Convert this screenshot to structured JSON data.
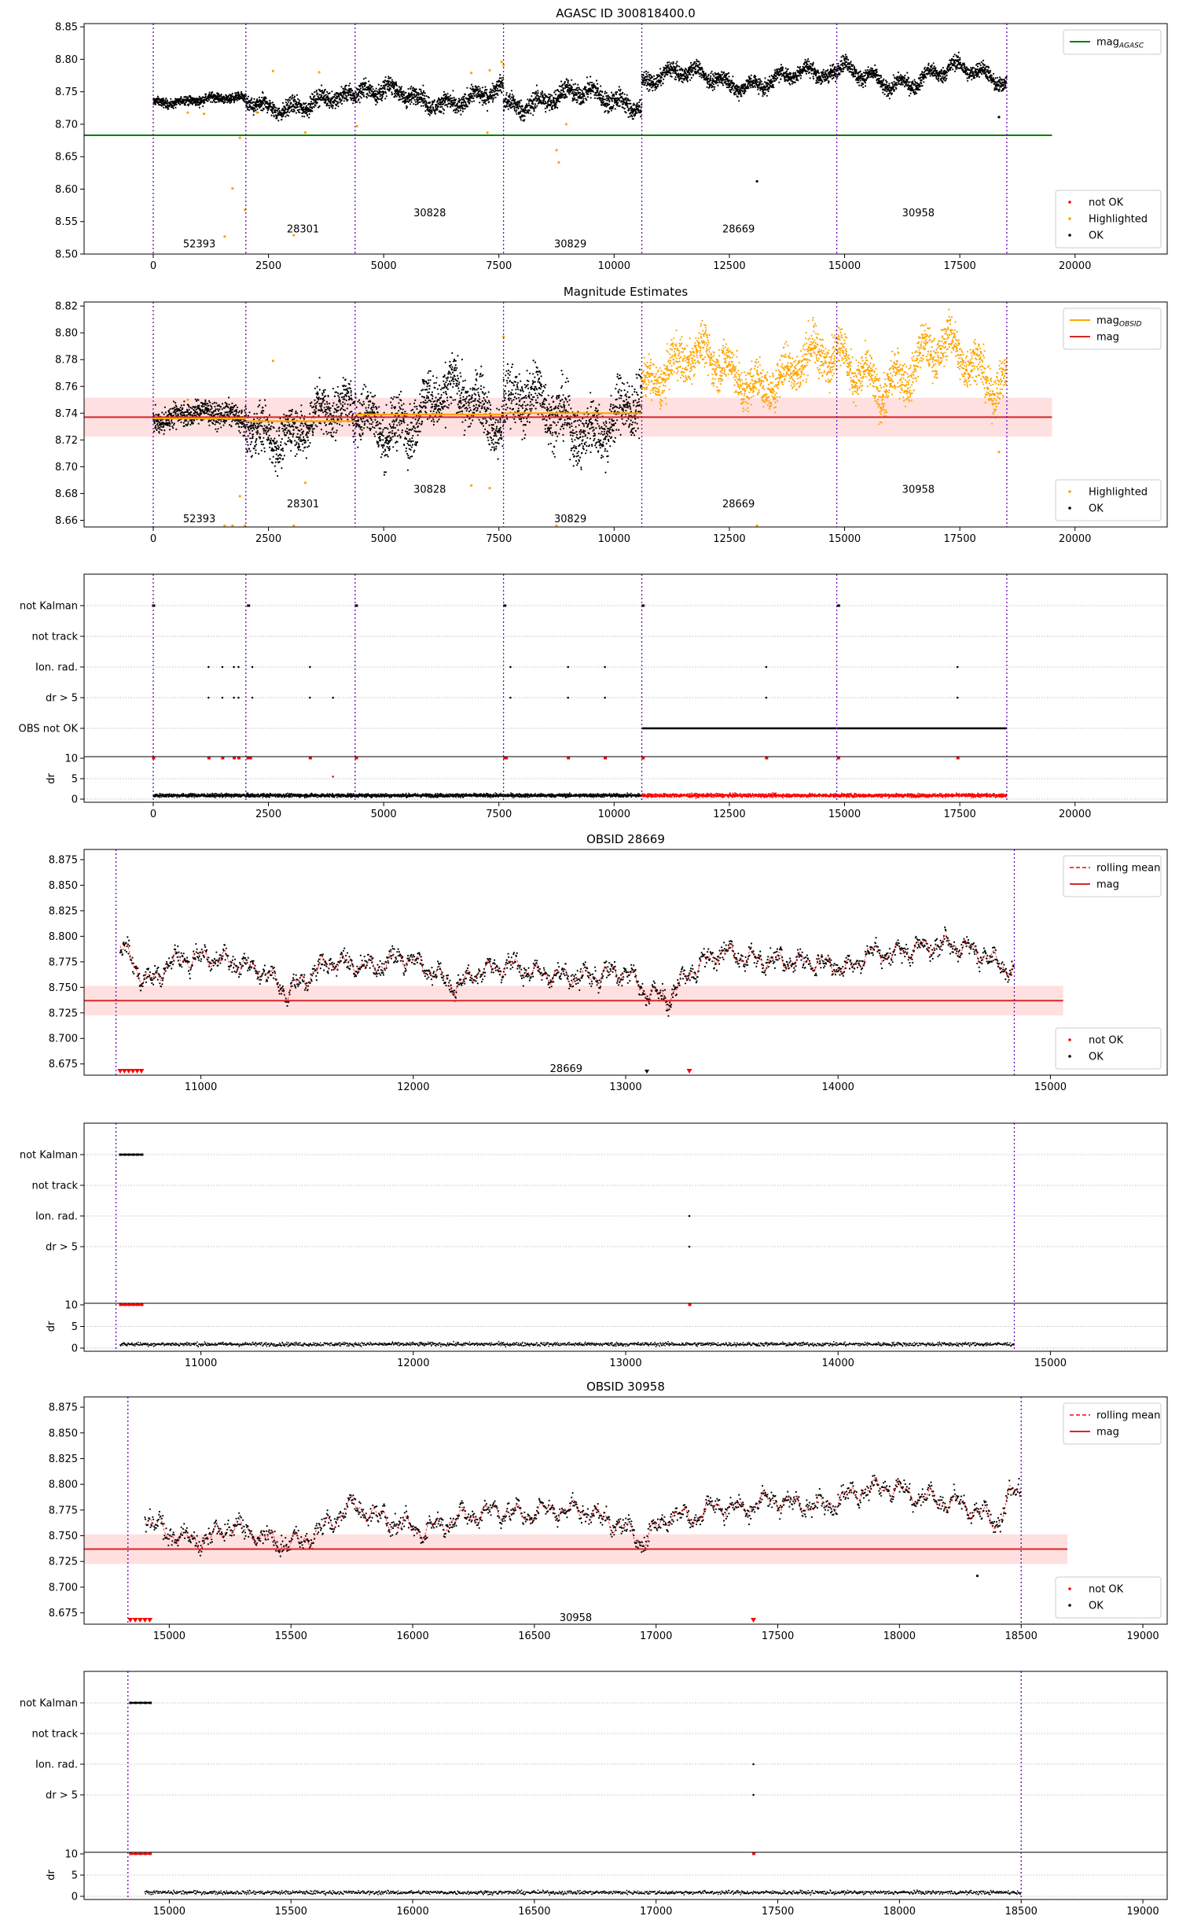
{
  "chart_data": [
    {
      "panel": "agasc",
      "type": "scatter",
      "title": "AGASC ID 300818400.0",
      "xlim": [
        -1500,
        22000
      ],
      "ylim": [
        8.5,
        8.855
      ],
      "xticks": [
        0,
        2500,
        5000,
        7500,
        10000,
        12500,
        15000,
        17500,
        20000
      ],
      "yticks": [
        8.5,
        8.55,
        8.6,
        8.65,
        8.7,
        8.75,
        8.8,
        8.85
      ],
      "grid": false,
      "legend_top": {
        "position": "top-right",
        "entries": [
          {
            "label": "mag",
            "sub": "AGASC",
            "color": "#008000"
          }
        ]
      },
      "legend_bottom": {
        "position": "bottom-right",
        "entries": [
          {
            "label": "not OK",
            "color": "#ff0000"
          },
          {
            "label": "Highlighted",
            "color": "#ffa500"
          },
          {
            "label": "OK",
            "color": "#000000"
          }
        ]
      },
      "mag_agasc": 8.683,
      "vlines": [
        0,
        2010,
        4380,
        7600,
        10600,
        14830,
        18520
      ],
      "obsids": [
        {
          "label": "52393",
          "x": 1000,
          "y": 8.515
        },
        {
          "label": "28301",
          "x": 3250,
          "y": 8.538
        },
        {
          "label": "30828",
          "x": 6000,
          "y": 8.563
        },
        {
          "label": "30829",
          "x": 9050,
          "y": 8.515
        },
        {
          "label": "28669",
          "x": 12700,
          "y": 8.538
        },
        {
          "label": "30958",
          "x": 16600,
          "y": 8.563
        }
      ],
      "segments": [
        {
          "x0": 0,
          "x1": 2010,
          "base": 8.737,
          "amp": 0.004,
          "noise": 0.007,
          "type": "ok"
        },
        {
          "x0": 2010,
          "x1": 4380,
          "base": 8.733,
          "amp": 0.01,
          "noise": 0.013,
          "type": "ok"
        },
        {
          "x0": 4380,
          "x1": 7600,
          "base": 8.742,
          "amp": 0.012,
          "noise": 0.014,
          "type": "ok"
        },
        {
          "x0": 7600,
          "x1": 10600,
          "base": 8.739,
          "amp": 0.012,
          "noise": 0.016,
          "type": "ok"
        },
        {
          "x0": 10600,
          "x1": 14830,
          "base": 8.77,
          "amp": 0.012,
          "noise": 0.012,
          "type": "ok"
        },
        {
          "x0": 14830,
          "x1": 18520,
          "base": 8.774,
          "amp": 0.014,
          "noise": 0.012,
          "type": "ok"
        }
      ],
      "highlight_points": [
        [
          1550,
          8.527
        ],
        [
          1720,
          8.601
        ],
        [
          1880,
          8.679
        ],
        [
          1990,
          8.568
        ],
        [
          2250,
          8.718
        ],
        [
          2600,
          8.782
        ],
        [
          3050,
          8.529
        ],
        [
          3300,
          8.687
        ],
        [
          3600,
          8.78
        ],
        [
          4420,
          8.697
        ],
        [
          6900,
          8.779
        ],
        [
          7300,
          8.783
        ],
        [
          7560,
          8.796
        ],
        [
          7600,
          8.791
        ],
        [
          8750,
          8.66
        ],
        [
          8800,
          8.641
        ],
        [
          8960,
          8.7
        ],
        [
          7250,
          8.687
        ],
        [
          750,
          8.718
        ],
        [
          1100,
          8.716
        ]
      ],
      "ok_extra_points": [
        [
          13100,
          8.612
        ],
        [
          18350,
          8.711
        ]
      ],
      "notok_points": [],
      "mask_highlight": false
    },
    {
      "panel": "estimates",
      "type": "scatter",
      "title": "Magnitude Estimates",
      "xlim": [
        -1500,
        22000
      ],
      "ylim": [
        8.655,
        8.823
      ],
      "xticks": [
        0,
        2500,
        5000,
        7500,
        10000,
        12500,
        15000,
        17500,
        20000
      ],
      "yticks": [
        8.66,
        8.68,
        8.7,
        8.72,
        8.74,
        8.76,
        8.78,
        8.8,
        8.82
      ],
      "grid": false,
      "legend_top": {
        "position": "top-right",
        "entries": [
          {
            "label": "mag",
            "sub": "OBSID",
            "color": "#ffa500"
          },
          {
            "label": "mag",
            "sub": "",
            "color": "#d62728"
          }
        ]
      },
      "legend_bottom": {
        "position": "bottom-right",
        "entries": [
          {
            "label": "Highlighted",
            "color": "#ffa500"
          },
          {
            "label": "OK",
            "color": "#000000"
          }
        ]
      },
      "mag": 8.737,
      "mag_band": [
        8.7225,
        8.7515
      ],
      "mag_x_end": 19500,
      "obs_mag_lines": [
        {
          "x0": 0,
          "x1": 2010,
          "y": 8.736
        },
        {
          "x0": 2010,
          "x1": 4380,
          "y": 8.734
        },
        {
          "x0": 4380,
          "x1": 7600,
          "y": 8.739
        },
        {
          "x0": 7600,
          "x1": 10600,
          "y": 8.74
        }
      ],
      "vlines": [
        0,
        2010,
        4380,
        7600,
        10600,
        14830,
        18520
      ],
      "obsids": [
        {
          "label": "52393",
          "x": 1000,
          "y": 8.661
        },
        {
          "label": "28301",
          "x": 3250,
          "y": 8.672
        },
        {
          "label": "30828",
          "x": 6000,
          "y": 8.683
        },
        {
          "label": "30829",
          "x": 9050,
          "y": 8.661
        },
        {
          "label": "28669",
          "x": 12700,
          "y": 8.672
        },
        {
          "label": "30958",
          "x": 16600,
          "y": 8.683
        }
      ],
      "segments": [
        {
          "x0": 0,
          "x1": 2010,
          "base": 8.737,
          "amp": 0.004,
          "noise": 0.009,
          "type": "ok"
        },
        {
          "x0": 2010,
          "x1": 4380,
          "base": 8.733,
          "amp": 0.012,
          "noise": 0.018,
          "type": "ok"
        },
        {
          "x0": 4380,
          "x1": 7600,
          "base": 8.742,
          "amp": 0.015,
          "noise": 0.02,
          "type": "ok"
        },
        {
          "x0": 7600,
          "x1": 10600,
          "base": 8.739,
          "amp": 0.014,
          "noise": 0.022,
          "type": "ok"
        },
        {
          "x0": 10600,
          "x1": 14830,
          "base": 8.772,
          "amp": 0.013,
          "noise": 0.016,
          "type": "hl"
        },
        {
          "x0": 14830,
          "x1": 18520,
          "base": 8.775,
          "amp": 0.016,
          "noise": 0.016,
          "type": "hl"
        }
      ],
      "highlight_points": [
        [
          1550,
          8.656
        ],
        [
          1720,
          8.656
        ],
        [
          1880,
          8.678
        ],
        [
          1990,
          8.656
        ],
        [
          2600,
          8.779
        ],
        [
          3050,
          8.656
        ],
        [
          3300,
          8.688
        ],
        [
          6900,
          8.686
        ],
        [
          7300,
          8.684
        ],
        [
          7600,
          8.797
        ],
        [
          8750,
          8.656
        ],
        [
          13100,
          8.656
        ],
        [
          18350,
          8.711
        ],
        [
          750,
          8.75
        ]
      ],
      "ok_extra_points": [],
      "notok_points": []
    },
    {
      "panel": "flags_all",
      "type": "flags",
      "xlim": [
        -1500,
        22000
      ],
      "xticks": [
        0,
        2500,
        5000,
        7500,
        10000,
        12500,
        15000,
        17500,
        20000
      ],
      "categories": [
        "not Kalman",
        "not track",
        "Ion. rad.",
        "dr > 5",
        "OBS not OK"
      ],
      "dr_ylabel": "dr",
      "dr_yticks": [
        0,
        5,
        10
      ],
      "vlines": [
        0,
        2010,
        4380,
        7600,
        10600,
        14830,
        18520
      ],
      "not_kalman_x": [
        0,
        2060,
        4400,
        7620,
        10620,
        14860
      ],
      "ion_rad_x": [
        1200,
        1500,
        1750,
        1850,
        2150,
        3400,
        7750,
        9000,
        9800,
        13300,
        17450
      ],
      "dr5_x": [
        1200,
        1500,
        1750,
        1850,
        2150,
        3400,
        3900,
        7750,
        9000,
        9800,
        13300,
        17450
      ],
      "obs_not_ok": [
        10600,
        18520
      ],
      "dr_black_range": [
        0,
        10600
      ],
      "dr_red_range": [
        10600,
        18520
      ],
      "dr_high_x": [
        0,
        1200,
        1500,
        1750,
        1850,
        2050,
        2100,
        3400,
        4400,
        7620,
        7650,
        9000,
        9800,
        10620,
        13300,
        14860,
        17450
      ],
      "dr_mid_points": [
        [
          3900,
          5.5
        ]
      ]
    },
    {
      "panel": "obsid_28669",
      "type": "line",
      "title": "OBSID 28669",
      "xlim": [
        10450,
        15550
      ],
      "ylim": [
        8.664,
        8.885
      ],
      "xticks": [
        11000,
        12000,
        13000,
        14000,
        15000
      ],
      "yticks": [
        8.675,
        8.7,
        8.725,
        8.75,
        8.775,
        8.8,
        8.825,
        8.85,
        8.875
      ],
      "grid": false,
      "legend_top": {
        "position": "top-right",
        "entries": [
          {
            "label": "rolling mean",
            "color": "#ff0000",
            "dashed": true
          },
          {
            "label": "mag",
            "color": "#d62728"
          }
        ]
      },
      "legend_bottom": {
        "position": "bottom-right",
        "entries": [
          {
            "label": "not OK",
            "color": "#ff0000"
          },
          {
            "label": "OK",
            "color": "#000000"
          }
        ]
      },
      "mag": 8.737,
      "mag_band": [
        8.7225,
        8.7515
      ],
      "mag_x_end": 15060,
      "vlines": [
        10600,
        14830
      ],
      "obsid_label": {
        "label": "28669",
        "x": 12720,
        "y": 8.67
      },
      "x0": 10620,
      "x1": 14830,
      "profile": [
        [
          10620,
          8.795
        ],
        [
          10700,
          8.765
        ],
        [
          10780,
          8.755
        ],
        [
          10850,
          8.775
        ],
        [
          11000,
          8.78
        ],
        [
          11150,
          8.775
        ],
        [
          11300,
          8.765
        ],
        [
          11400,
          8.745
        ],
        [
          11500,
          8.76
        ],
        [
          11600,
          8.775
        ],
        [
          11800,
          8.77
        ],
        [
          11950,
          8.78
        ],
        [
          12100,
          8.765
        ],
        [
          12200,
          8.75
        ],
        [
          12300,
          8.765
        ],
        [
          12450,
          8.772
        ],
        [
          12600,
          8.763
        ],
        [
          12800,
          8.76
        ],
        [
          13000,
          8.765
        ],
        [
          13100,
          8.745
        ],
        [
          13200,
          8.738
        ],
        [
          13300,
          8.765
        ],
        [
          13450,
          8.785
        ],
        [
          13600,
          8.778
        ],
        [
          13750,
          8.775
        ],
        [
          13900,
          8.775
        ],
        [
          14050,
          8.768
        ],
        [
          14150,
          8.785
        ],
        [
          14250,
          8.782
        ],
        [
          14400,
          8.79
        ],
        [
          14550,
          8.792
        ],
        [
          14700,
          8.78
        ],
        [
          14830,
          8.765
        ]
      ],
      "noise": 0.008,
      "notok_points": [
        [
          10620,
          8.665
        ],
        [
          10640,
          8.665
        ],
        [
          10660,
          8.665
        ],
        [
          10680,
          8.665
        ],
        [
          10700,
          8.665
        ],
        [
          10720,
          8.665
        ],
        [
          13300,
          8.665
        ]
      ],
      "ok_extra_points": [
        [
          13100,
          8.665
        ]
      ]
    },
    {
      "panel": "flags_28669",
      "type": "flags",
      "xlim": [
        10450,
        15550
      ],
      "xticks": [
        11000,
        12000,
        13000,
        14000,
        15000
      ],
      "categories": [
        "not Kalman",
        "not track",
        "Ion. rad.",
        "dr > 5"
      ],
      "dr_ylabel": "dr",
      "dr_yticks": [
        0,
        5,
        10
      ],
      "vlines": [
        10600,
        14830
      ],
      "not_kalman_x": [
        10620,
        10640,
        10660,
        10680,
        10700,
        10720
      ],
      "ion_rad_x": [
        13300
      ],
      "dr5_x": [
        13300
      ],
      "dr_black_range": [
        10620,
        14830
      ],
      "dr_high_x": [
        10620,
        10640,
        10660,
        10680,
        10700,
        10720,
        13300
      ],
      "dr_mid_points": []
    },
    {
      "panel": "obsid_30958",
      "type": "line",
      "title": "OBSID 30958",
      "xlim": [
        14650,
        19100
      ],
      "ylim": [
        8.664,
        8.885
      ],
      "xticks": [
        15000,
        15500,
        16000,
        16500,
        17000,
        17500,
        18000,
        18500,
        19000
      ],
      "yticks": [
        8.675,
        8.7,
        8.725,
        8.75,
        8.775,
        8.8,
        8.825,
        8.85,
        8.875
      ],
      "grid": false,
      "legend_top": {
        "position": "top-right",
        "entries": [
          {
            "label": "rolling mean",
            "color": "#ff0000",
            "dashed": true
          },
          {
            "label": "mag",
            "color": "#d62728"
          }
        ]
      },
      "legend_bottom": {
        "position": "bottom-right",
        "entries": [
          {
            "label": "not OK",
            "color": "#ff0000"
          },
          {
            "label": "OK",
            "color": "#000000"
          }
        ]
      },
      "mag": 8.737,
      "mag_band": [
        8.7225,
        8.7515
      ],
      "mag_x_end": 18690,
      "vlines": [
        14830,
        18500
      ],
      "obsid_label": {
        "label": "30958",
        "x": 16670,
        "y": 8.67
      },
      "x0": 14900,
      "x1": 18500,
      "profile": [
        [
          14900,
          8.77
        ],
        [
          14950,
          8.758
        ],
        [
          15050,
          8.748
        ],
        [
          15150,
          8.745
        ],
        [
          15250,
          8.76
        ],
        [
          15350,
          8.752
        ],
        [
          15450,
          8.742
        ],
        [
          15550,
          8.745
        ],
        [
          15650,
          8.76
        ],
        [
          15750,
          8.78
        ],
        [
          15850,
          8.77
        ],
        [
          15950,
          8.76
        ],
        [
          16050,
          8.755
        ],
        [
          16150,
          8.765
        ],
        [
          16250,
          8.77
        ],
        [
          16350,
          8.775
        ],
        [
          16450,
          8.77
        ],
        [
          16550,
          8.775
        ],
        [
          16700,
          8.775
        ],
        [
          16850,
          8.76
        ],
        [
          16950,
          8.745
        ],
        [
          17050,
          8.77
        ],
        [
          17150,
          8.768
        ],
        [
          17250,
          8.78
        ],
        [
          17350,
          8.775
        ],
        [
          17450,
          8.785
        ],
        [
          17550,
          8.782
        ],
        [
          17650,
          8.778
        ],
        [
          17750,
          8.785
        ],
        [
          17850,
          8.795
        ],
        [
          17950,
          8.798
        ],
        [
          18050,
          8.79
        ],
        [
          18150,
          8.785
        ],
        [
          18250,
          8.78
        ],
        [
          18350,
          8.77
        ],
        [
          18400,
          8.76
        ],
        [
          18450,
          8.79
        ],
        [
          18500,
          8.793
        ]
      ],
      "noise": 0.008,
      "notok_points": [
        [
          14840,
          8.665
        ],
        [
          14860,
          8.665
        ],
        [
          14880,
          8.665
        ],
        [
          14900,
          8.665
        ],
        [
          14920,
          8.665
        ],
        [
          17400,
          8.665
        ]
      ],
      "ok_extra_points": [
        [
          18320,
          8.711
        ]
      ]
    },
    {
      "panel": "flags_30958",
      "type": "flags",
      "xlim": [
        14650,
        19100
      ],
      "xticks": [
        15000,
        15500,
        16000,
        16500,
        17000,
        17500,
        18000,
        18500,
        19000
      ],
      "categories": [
        "not Kalman",
        "not track",
        "Ion. rad.",
        "dr > 5"
      ],
      "dr_ylabel": "dr",
      "dr_yticks": [
        0,
        5,
        10
      ],
      "vlines": [
        14830,
        18500
      ],
      "not_kalman_x": [
        14840,
        14860,
        14880,
        14900,
        14920
      ],
      "ion_rad_x": [
        17400
      ],
      "dr5_x": [
        17400
      ],
      "dr_black_range": [
        14900,
        18500
      ],
      "dr_high_x": [
        14840,
        14860,
        14880,
        14900,
        14920,
        17400
      ],
      "dr_mid_points": []
    }
  ]
}
